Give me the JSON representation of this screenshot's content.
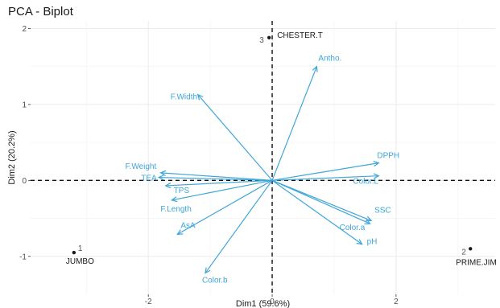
{
  "chart_data": {
    "type": "scatter",
    "title": "PCA - Biplot",
    "xlabel": "Dim1 (59.6%)",
    "ylabel": "Dim2 (20.2%)",
    "xlim": [
      -3.9,
      3.6
    ],
    "ylim": [
      -1.5,
      2.1
    ],
    "xticks": [
      -2,
      0,
      2
    ],
    "yticks": [
      -1,
      0,
      1,
      2
    ],
    "grid": true,
    "reference_lines": {
      "x": 0,
      "y": 0
    },
    "individuals": [
      {
        "id": "1",
        "name": "JUMBO",
        "x": -3.2,
        "y": -0.95
      },
      {
        "id": "2",
        "name": "PRIME.JIM",
        "x": 3.2,
        "y": -0.9
      },
      {
        "id": "3",
        "name": "CHESTER.T",
        "x": -0.05,
        "y": 1.88
      }
    ],
    "variables": [
      {
        "name": "Antho.",
        "x": 0.72,
        "y": 1.5
      },
      {
        "name": "F.Width",
        "x": -1.2,
        "y": 1.13
      },
      {
        "name": "DPPH",
        "x": 1.72,
        "y": 0.23
      },
      {
        "name": "Color.L",
        "x": 1.72,
        "y": 0.06
      },
      {
        "name": "F.Weight",
        "x": -1.8,
        "y": 0.1
      },
      {
        "name": "TEA",
        "x": -1.83,
        "y": 0.04
      },
      {
        "name": "TPS",
        "x": -1.72,
        "y": -0.07
      },
      {
        "name": "F.Length",
        "x": -1.62,
        "y": -0.26
      },
      {
        "name": "AsA",
        "x": -1.53,
        "y": -0.71
      },
      {
        "name": "Color.b",
        "x": -1.08,
        "y": -1.22
      },
      {
        "name": "SSC",
        "x": 1.6,
        "y": -0.53
      },
      {
        "name": "Color.a",
        "x": 1.58,
        "y": -0.57
      },
      {
        "name": "pH",
        "x": 1.45,
        "y": -0.84
      }
    ],
    "colors": {
      "variables": "#3fa6d8",
      "individuals": "#1a1a1a"
    }
  }
}
